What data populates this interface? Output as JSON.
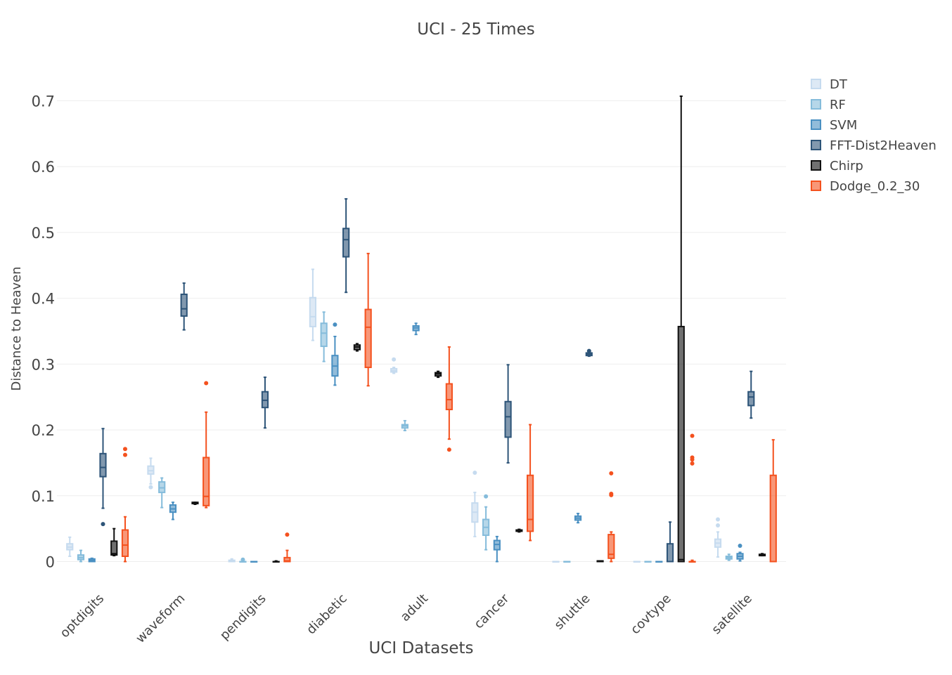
{
  "chart_data": {
    "type": "box",
    "title": "UCI - 25 Times",
    "xlabel": "UCI Datasets",
    "ylabel": "Distance to Heaven",
    "ylim": [
      -0.03,
      0.72
    ],
    "yticks": [
      0,
      0.1,
      0.2,
      0.3,
      0.4,
      0.5,
      0.6,
      0.7
    ],
    "ytick_labels": [
      "0",
      "0.1",
      "0.2",
      "0.3",
      "0.4",
      "0.5",
      "0.6",
      "0.7"
    ],
    "grid": true,
    "legend_position": "top-right",
    "categories": [
      "optdigits",
      "waveform",
      "pendigits",
      "diabetic",
      "adult",
      "cancer",
      "shuttle",
      "covtype",
      "satellite"
    ],
    "series": [
      {
        "name": "DT",
        "color": "#c6dbef",
        "boxes": [
          {
            "min": 0.008,
            "q1": 0.018,
            "median": 0.022,
            "q3": 0.027,
            "max": 0.037,
            "outliers": []
          },
          {
            "min": 0.118,
            "q1": 0.133,
            "median": 0.138,
            "q3": 0.145,
            "max": 0.157,
            "outliers": [
              0.113
            ]
          },
          {
            "min": 0.0,
            "q1": 0.0,
            "median": 0.001,
            "q3": 0.002,
            "max": 0.004,
            "outliers": []
          },
          {
            "min": 0.336,
            "q1": 0.357,
            "median": 0.372,
            "q3": 0.401,
            "max": 0.444,
            "outliers": []
          },
          {
            "min": 0.286,
            "q1": 0.288,
            "median": 0.29,
            "q3": 0.293,
            "max": 0.295,
            "outliers": [
              0.307
            ]
          },
          {
            "min": 0.038,
            "q1": 0.06,
            "median": 0.075,
            "q3": 0.089,
            "max": 0.105,
            "outliers": [
              0.135
            ]
          },
          {
            "min": 0.0,
            "q1": 0.0,
            "median": 0.0,
            "q3": 0.0,
            "max": 0.0,
            "outliers": []
          },
          {
            "min": 0.0,
            "q1": 0.0,
            "median": 0.0,
            "q3": 0.0,
            "max": 0.0,
            "outliers": []
          },
          {
            "min": 0.007,
            "q1": 0.022,
            "median": 0.028,
            "q3": 0.034,
            "max": 0.045,
            "outliers": [
              0.055,
              0.064
            ]
          }
        ]
      },
      {
        "name": "RF",
        "color": "#85bcdb",
        "boxes": [
          {
            "min": 0.0,
            "q1": 0.003,
            "median": 0.006,
            "q3": 0.01,
            "max": 0.017,
            "outliers": []
          },
          {
            "min": 0.082,
            "q1": 0.105,
            "median": 0.112,
            "q3": 0.121,
            "max": 0.127,
            "outliers": []
          },
          {
            "min": 0.0,
            "q1": 0.0,
            "median": 0.0,
            "q3": 0.0,
            "max": 0.001,
            "outliers": [
              0.003
            ]
          },
          {
            "min": 0.304,
            "q1": 0.327,
            "median": 0.347,
            "q3": 0.362,
            "max": 0.379,
            "outliers": []
          },
          {
            "min": 0.199,
            "q1": 0.203,
            "median": 0.206,
            "q3": 0.208,
            "max": 0.214,
            "outliers": []
          },
          {
            "min": 0.018,
            "q1": 0.04,
            "median": 0.052,
            "q3": 0.064,
            "max": 0.083,
            "outliers": [
              0.099
            ]
          },
          {
            "min": 0.0,
            "q1": 0.0,
            "median": 0.0,
            "q3": 0.0,
            "max": 0.0,
            "outliers": []
          },
          {
            "min": 0.0,
            "q1": 0.0,
            "median": 0.0,
            "q3": 0.0,
            "max": 0.0,
            "outliers": []
          },
          {
            "min": 0.002,
            "q1": 0.004,
            "median": 0.006,
            "q3": 0.008,
            "max": 0.011,
            "outliers": []
          }
        ]
      },
      {
        "name": "SVM",
        "color": "#4a90c2",
        "boxes": [
          {
            "min": 0.0,
            "q1": 0.0,
            "median": 0.002,
            "q3": 0.004,
            "max": 0.005,
            "outliers": []
          },
          {
            "min": 0.064,
            "q1": 0.075,
            "median": 0.08,
            "q3": 0.086,
            "max": 0.09,
            "outliers": []
          },
          {
            "min": 0.0,
            "q1": 0.0,
            "median": 0.0,
            "q3": 0.0,
            "max": 0.0,
            "outliers": []
          },
          {
            "min": 0.268,
            "q1": 0.282,
            "median": 0.297,
            "q3": 0.313,
            "max": 0.342,
            "outliers": [
              0.36
            ]
          },
          {
            "min": 0.345,
            "q1": 0.351,
            "median": 0.355,
            "q3": 0.358,
            "max": 0.362,
            "outliers": []
          },
          {
            "min": 0.0,
            "q1": 0.018,
            "median": 0.026,
            "q3": 0.032,
            "max": 0.038,
            "outliers": []
          },
          {
            "min": 0.059,
            "q1": 0.063,
            "median": 0.066,
            "q3": 0.069,
            "max": 0.073,
            "outliers": []
          },
          {
            "min": 0.0,
            "q1": 0.0,
            "median": 0.0,
            "q3": 0.0,
            "max": 0.0,
            "outliers": []
          },
          {
            "min": 0.001,
            "q1": 0.004,
            "median": 0.008,
            "q3": 0.012,
            "max": 0.014,
            "outliers": [
              0.024
            ]
          }
        ]
      },
      {
        "name": "FFT-Dist2Heaven",
        "color": "#2d5478",
        "boxes": [
          {
            "min": 0.081,
            "q1": 0.129,
            "median": 0.143,
            "q3": 0.164,
            "max": 0.202,
            "outliers": [
              0.057
            ]
          },
          {
            "min": 0.352,
            "q1": 0.373,
            "median": 0.384,
            "q3": 0.406,
            "max": 0.423,
            "outliers": []
          },
          {
            "min": 0.203,
            "q1": 0.234,
            "median": 0.245,
            "q3": 0.258,
            "max": 0.28,
            "outliers": []
          },
          {
            "min": 0.409,
            "q1": 0.463,
            "median": 0.489,
            "q3": 0.506,
            "max": 0.551,
            "outliers": []
          },
          null,
          {
            "min": 0.15,
            "q1": 0.189,
            "median": 0.22,
            "q3": 0.243,
            "max": 0.299,
            "outliers": []
          },
          {
            "min": 0.312,
            "q1": 0.313,
            "median": 0.315,
            "q3": 0.317,
            "max": 0.318,
            "outliers": [
              0.32
            ]
          },
          {
            "min": 0.0,
            "q1": 0.0,
            "median": 0.0,
            "q3": 0.027,
            "max": 0.06,
            "outliers": []
          },
          {
            "min": 0.218,
            "q1": 0.237,
            "median": 0.25,
            "q3": 0.258,
            "max": 0.289,
            "outliers": []
          }
        ]
      },
      {
        "name": "Chirp",
        "color": "#111111",
        "boxes": [
          {
            "min": 0.009,
            "q1": 0.01,
            "median": 0.012,
            "q3": 0.031,
            "max": 0.05,
            "outliers": []
          },
          {
            "min": 0.087,
            "q1": 0.088,
            "median": 0.089,
            "q3": 0.09,
            "max": 0.09,
            "outliers": []
          },
          {
            "min": 0.0,
            "q1": 0.0,
            "median": 0.0,
            "q3": 0.0,
            "max": 0.001,
            "outliers": []
          },
          {
            "min": 0.32,
            "q1": 0.322,
            "median": 0.326,
            "q3": 0.329,
            "max": 0.331,
            "outliers": []
          },
          {
            "min": 0.28,
            "q1": 0.282,
            "median": 0.285,
            "q3": 0.287,
            "max": 0.289,
            "outliers": []
          },
          {
            "min": 0.045,
            "q1": 0.046,
            "median": 0.047,
            "q3": 0.048,
            "max": 0.049,
            "outliers": []
          },
          {
            "min": 0.0,
            "q1": 0.0,
            "median": 0.001,
            "q3": 0.001,
            "max": 0.001,
            "outliers": []
          },
          {
            "min": 0.0,
            "q1": 0.0,
            "median": 0.003,
            "q3": 0.357,
            "max": 0.707,
            "outliers": []
          },
          {
            "min": 0.009,
            "q1": 0.009,
            "median": 0.01,
            "q3": 0.011,
            "max": 0.012,
            "outliers": []
          }
        ]
      },
      {
        "name": "Dodge_0.2_30",
        "color": "#f4511e",
        "boxes": [
          {
            "min": 0.0,
            "q1": 0.008,
            "median": 0.025,
            "q3": 0.048,
            "max": 0.068,
            "outliers": [
              0.162,
              0.171
            ]
          },
          {
            "min": 0.082,
            "q1": 0.085,
            "median": 0.099,
            "q3": 0.158,
            "max": 0.227,
            "outliers": [
              0.271
            ]
          },
          {
            "min": 0.0,
            "q1": 0.0,
            "median": 0.001,
            "q3": 0.006,
            "max": 0.017,
            "outliers": [
              0.041
            ]
          },
          {
            "min": 0.267,
            "q1": 0.295,
            "median": 0.356,
            "q3": 0.383,
            "max": 0.468,
            "outliers": []
          },
          {
            "min": 0.186,
            "q1": 0.231,
            "median": 0.246,
            "q3": 0.27,
            "max": 0.326,
            "outliers": [
              0.17
            ]
          },
          {
            "min": 0.032,
            "q1": 0.046,
            "median": 0.064,
            "q3": 0.131,
            "max": 0.208,
            "outliers": []
          },
          {
            "min": 0.0,
            "q1": 0.005,
            "median": 0.011,
            "q3": 0.041,
            "max": 0.045,
            "outliers": [
              0.101,
              0.103,
              0.134
            ]
          },
          {
            "min": 0.0,
            "q1": 0.0,
            "median": 0.0,
            "q3": 0.0,
            "max": 0.002,
            "outliers": [
              0.149,
              0.155,
              0.158,
              0.191
            ]
          },
          {
            "min": 0.0,
            "q1": 0.0,
            "median": 0.0,
            "q3": 0.131,
            "max": 0.185,
            "outliers": []
          }
        ]
      }
    ]
  }
}
